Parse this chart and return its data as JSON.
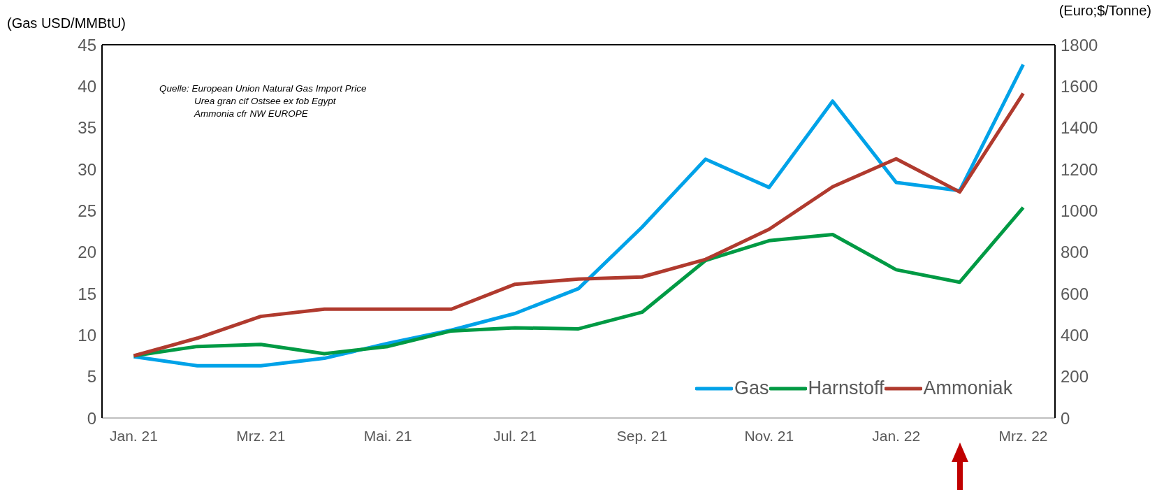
{
  "chart_data": {
    "type": "line",
    "categories": [
      "Jan. 21",
      null,
      "Mrz. 21",
      null,
      "Mai. 21",
      null,
      "Jul. 21",
      null,
      "Sep. 21",
      null,
      "Nov. 21",
      null,
      "Jan. 22",
      null,
      "Mrz. 22"
    ],
    "series": [
      {
        "name": "Gas",
        "color": "#00a2e8",
        "values": [
          7.4,
          6.3,
          6.3,
          7.2,
          9.0,
          10.6,
          12.6,
          15.6,
          23.0,
          31.2,
          27.8,
          38.2,
          28.4,
          27.4,
          42.6
        ]
      },
      {
        "name": "Harnstoff",
        "color": "#009a44",
        "axis": "y2",
        "values": [
          300,
          345,
          355,
          310,
          345,
          420,
          435,
          430,
          510,
          760,
          855,
          885,
          715,
          655,
          1015
        ]
      },
      {
        "name": "Ammoniak",
        "color": "#b03a2e",
        "axis": "y2",
        "values": [
          300,
          385,
          490,
          525,
          525,
          525,
          645,
          670,
          680,
          765,
          910,
          1115,
          1250,
          1090,
          1565
        ]
      }
    ],
    "ylabel": "(Gas USD/MMBtU)",
    "y2label": "(Euro;$/Tonne)",
    "ylim": [
      0,
      45
    ],
    "yticks": [
      0,
      5,
      10,
      15,
      20,
      25,
      30,
      35,
      40,
      45
    ],
    "y2lim": [
      0,
      1800
    ],
    "y2ticks": [
      0,
      200,
      400,
      600,
      800,
      1000,
      1200,
      1400,
      1600,
      1800
    ],
    "annotations": [
      "Quelle: European Union Natural Gas Import Price",
      "Urea gran cif Ostsee ex fob Egypt",
      "Ammonia cfr NW EUROPE"
    ],
    "legend": "bottom right",
    "grid": false,
    "marker": "none",
    "line_style": "solid"
  }
}
